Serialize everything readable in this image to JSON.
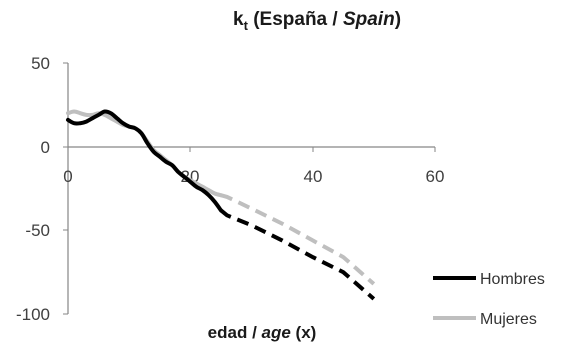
{
  "chart_data": {
    "type": "line",
    "title": {
      "main": "k",
      "sub": "t",
      "rest": " (España / ",
      "italic": "Spain",
      "close": ")"
    },
    "xlabel": {
      "normal": "edad / ",
      "italic": "age",
      "suffix": " (x)"
    },
    "ylabel": "",
    "xlim": [
      0,
      60
    ],
    "ylim": [
      -100,
      50
    ],
    "xticks": [
      "0",
      "20",
      "40",
      "60"
    ],
    "yticks": [
      "50",
      "0",
      "-50",
      "-100"
    ],
    "grid": false,
    "legend_position": "bottom-right",
    "series": [
      {
        "name": "Hombres",
        "color": "#000000",
        "observed": [
          [
            0,
            16
          ],
          [
            1,
            14
          ],
          [
            2,
            14
          ],
          [
            3,
            15
          ],
          [
            4,
            17
          ],
          [
            5,
            19
          ],
          [
            6,
            21
          ],
          [
            7,
            20
          ],
          [
            8,
            17
          ],
          [
            9,
            14
          ],
          [
            10,
            12
          ],
          [
            11,
            11
          ],
          [
            12,
            8
          ],
          [
            13,
            2
          ],
          [
            14,
            -3
          ],
          [
            15,
            -6
          ],
          [
            16,
            -9
          ],
          [
            17,
            -11
          ],
          [
            18,
            -15
          ],
          [
            19,
            -18
          ],
          [
            20,
            -21
          ],
          [
            21,
            -24
          ],
          [
            22,
            -26
          ],
          [
            23,
            -29
          ],
          [
            24,
            -33
          ],
          [
            25,
            -38
          ]
        ],
        "projected": [
          [
            25,
            -38
          ],
          [
            26,
            -41
          ],
          [
            30,
            -47
          ],
          [
            35,
            -56
          ],
          [
            40,
            -66
          ],
          [
            45,
            -75
          ],
          [
            50,
            -91
          ]
        ]
      },
      {
        "name": "Mujeres",
        "color": "#bfbfbf",
        "observed": [
          [
            0,
            20
          ],
          [
            1,
            21
          ],
          [
            2,
            20
          ],
          [
            3,
            19
          ],
          [
            4,
            19
          ],
          [
            5,
            20
          ],
          [
            6,
            19
          ],
          [
            7,
            17
          ],
          [
            8,
            15
          ],
          [
            9,
            13
          ],
          [
            10,
            12
          ],
          [
            11,
            11
          ],
          [
            12,
            8
          ],
          [
            13,
            3
          ],
          [
            14,
            -2
          ],
          [
            15,
            -5
          ],
          [
            16,
            -8
          ],
          [
            17,
            -11
          ],
          [
            18,
            -15
          ],
          [
            19,
            -18
          ],
          [
            20,
            -20
          ],
          [
            21,
            -22
          ],
          [
            22,
            -24
          ],
          [
            23,
            -26
          ],
          [
            24,
            -28
          ],
          [
            25,
            -29
          ]
        ],
        "projected": [
          [
            25,
            -29
          ],
          [
            26,
            -30
          ],
          [
            30,
            -37
          ],
          [
            35,
            -46
          ],
          [
            40,
            -56
          ],
          [
            45,
            -66
          ],
          [
            50,
            -82
          ]
        ]
      }
    ]
  }
}
